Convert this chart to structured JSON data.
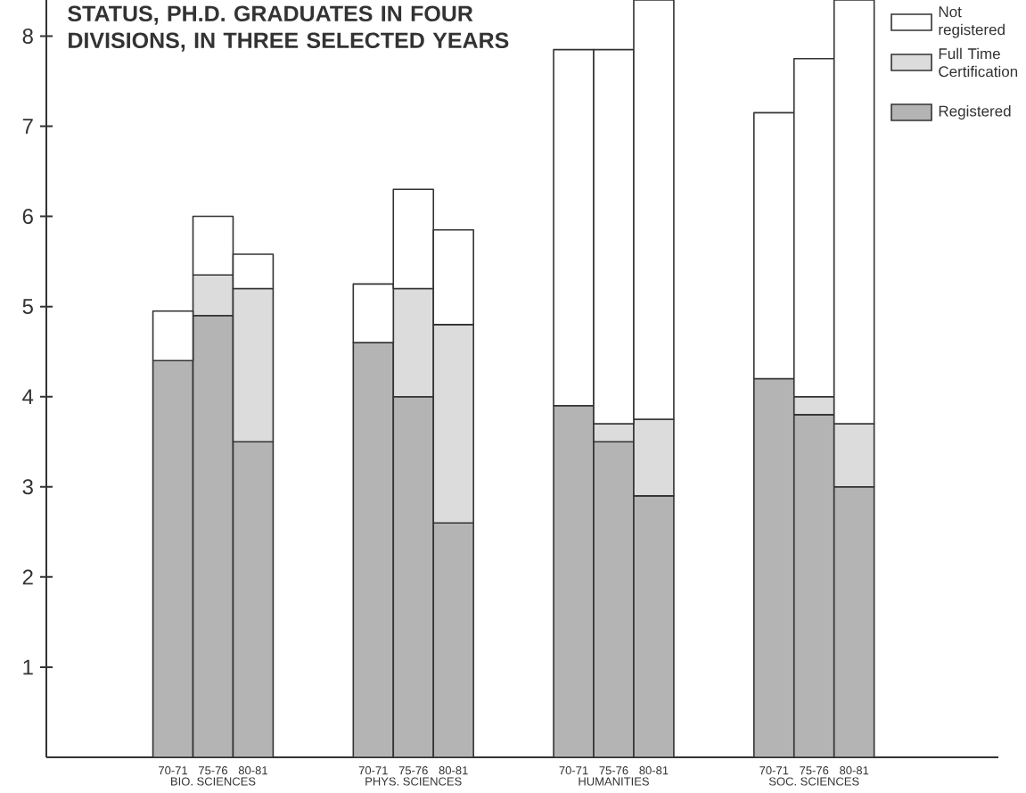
{
  "chart_data": {
    "type": "bar",
    "stacked": true,
    "title": "STATUS, PH.D. GRADUATES IN FOUR DIVISIONS, IN THREE SELECTED YEARS",
    "categories": [
      "70-71",
      "75-76",
      "80-81",
      null,
      null,
      "70-71",
      "75-76",
      "80-81",
      null,
      null,
      "70-71",
      "75-76",
      "80-81",
      null,
      null,
      "70-71",
      "75-76",
      "80-81"
    ],
    "annotations": [
      "BIO. SCIENCES",
      "PHYS. SCIENCES",
      "HUMANITIES",
      "SOC. SCIENCES"
    ],
    "series": [
      {
        "name": "Registered",
        "color": "#b4b4b4",
        "values": [
          4.4,
          4.9,
          3.5,
          null,
          null,
          4.6,
          4.0,
          2.6,
          null,
          null,
          3.9,
          3.5,
          2.9,
          null,
          null,
          4.2,
          3.8,
          3.0
        ]
      },
      {
        "name": "Full Time Certification",
        "color": "#dcdcdc",
        "values": [
          null,
          0.45,
          1.7,
          null,
          null,
          null,
          1.2,
          2.2,
          null,
          null,
          null,
          0.2,
          0.85,
          null,
          null,
          null,
          0.2,
          0.7
        ]
      },
      {
        "name": "Not registered",
        "color": "#ffffff",
        "values": [
          0.55,
          0.65,
          0.38,
          null,
          null,
          0.65,
          1.1,
          1.05,
          null,
          null,
          3.95,
          4.15,
          4.65,
          null,
          null,
          2.95,
          3.75,
          4.7
        ]
      }
    ],
    "ylim": [
      0,
      8.4
    ],
    "yticks": [
      1,
      2,
      3,
      4,
      5,
      6,
      7,
      8
    ],
    "legend": "top right"
  }
}
